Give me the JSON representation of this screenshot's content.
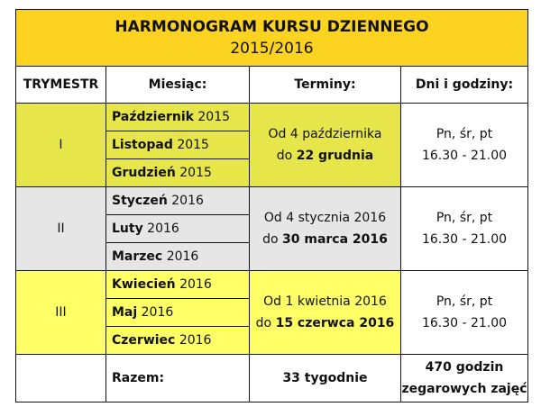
{
  "title": "HARMONOGRAM KURSU DZIENNEGO",
  "year": "2015/2016",
  "headers": [
    "TRYMESTR",
    "Miesiąc:",
    "Terminy:",
    "Dni i godziny:"
  ],
  "colors": {
    "title": "#fdd322",
    "trimester_1": "#e6e64a",
    "trimester_2": "#e6e6e6",
    "trimester_3": "#ffff66"
  },
  "trimesters": [
    {
      "label": "I",
      "months": [
        {
          "name": "Październik",
          "year": "2015"
        },
        {
          "name": "Listopad",
          "year": "2015"
        },
        {
          "name": "Grudzień",
          "year": "2015"
        }
      ],
      "term_from": "Od 4 października",
      "term_to_prefix": "do",
      "term_to": "22 grudnia",
      "days": "Pn, śr, pt",
      "hours": "16.30 - 21.00"
    },
    {
      "label": "II",
      "months": [
        {
          "name": "Styczeń",
          "year": "2016"
        },
        {
          "name": "Luty",
          "year": "2016"
        },
        {
          "name": "Marzec",
          "year": "2016"
        }
      ],
      "term_from": "Od 4 stycznia 2016",
      "term_to_prefix": "do",
      "term_to": "30 marca 2016",
      "days": "Pn, śr, pt",
      "hours": "16.30 - 21.00"
    },
    {
      "label": "III",
      "months": [
        {
          "name": "Kwiecień",
          "year": "2016"
        },
        {
          "name": "Maj",
          "year": "2016"
        },
        {
          "name": "Czerwiec",
          "year": "2016"
        }
      ],
      "term_from": "Od 1 kwietnia 2016",
      "term_to_prefix": "do",
      "term_to": "15 czerwca 2016",
      "days": "Pn, śr, pt",
      "hours": "16.30 - 21.00"
    }
  ],
  "summary": {
    "label": "Razem:",
    "weeks": "33 tygodnie",
    "hours_line1": "470 godzin",
    "hours_line2": "zegarowych zajęć"
  }
}
